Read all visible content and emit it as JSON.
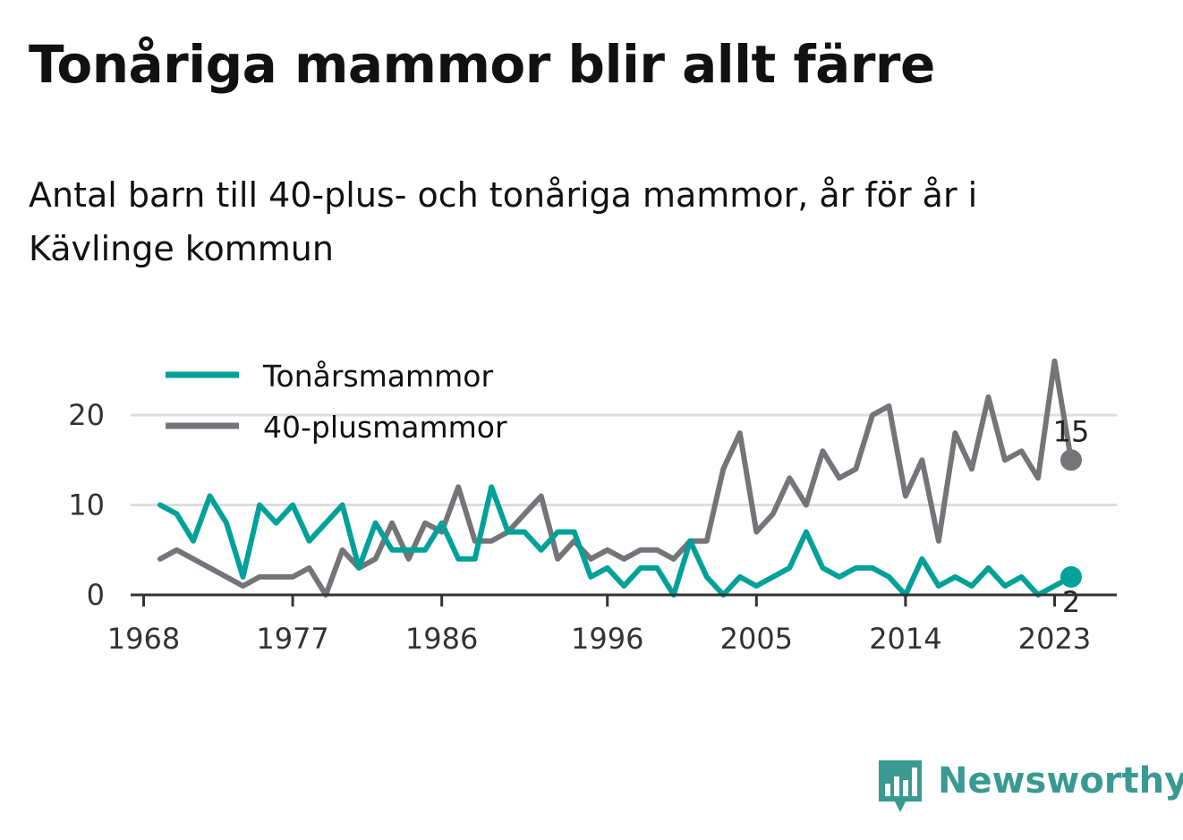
{
  "title": "Tonåriga mammor blir allt färre",
  "subtitle": "Antal barn till 40-plus- och tonåriga mammor, år för år i Kävlinge kommun",
  "brand": {
    "name": "Newsworthy",
    "color": "#3a9a92"
  },
  "chart_data": {
    "type": "line",
    "x": [
      1969,
      1970,
      1971,
      1972,
      1973,
      1974,
      1975,
      1976,
      1977,
      1978,
      1979,
      1980,
      1981,
      1982,
      1983,
      1984,
      1985,
      1986,
      1987,
      1988,
      1989,
      1990,
      1991,
      1992,
      1993,
      1994,
      1995,
      1996,
      1997,
      1998,
      1999,
      2000,
      2001,
      2002,
      2003,
      2004,
      2005,
      2006,
      2007,
      2008,
      2009,
      2010,
      2011,
      2012,
      2013,
      2014,
      2015,
      2016,
      2017,
      2018,
      2019,
      2020,
      2021,
      2022,
      2023,
      2024
    ],
    "series": [
      {
        "name": "Tonårsmammor",
        "color": "#00a199",
        "values": [
          10,
          9,
          6,
          11,
          8,
          2,
          10,
          8,
          10,
          6,
          8,
          10,
          3,
          8,
          5,
          5,
          5,
          8,
          4,
          4,
          12,
          7,
          7,
          5,
          7,
          7,
          2,
          3,
          1,
          3,
          3,
          0,
          6,
          2,
          0,
          2,
          1,
          2,
          3,
          7,
          3,
          2,
          3,
          3,
          2,
          0,
          4,
          1,
          2,
          1,
          3,
          1,
          2,
          0,
          1,
          2
        ],
        "end_label": "2"
      },
      {
        "name": "40-plusmammor",
        "color": "#757579",
        "values": [
          4,
          5,
          4,
          3,
          2,
          1,
          2,
          2,
          2,
          3,
          0,
          5,
          3,
          4,
          8,
          4,
          8,
          7,
          12,
          6,
          6,
          7,
          9,
          11,
          4,
          6,
          4,
          5,
          4,
          5,
          5,
          4,
          6,
          6,
          14,
          18,
          7,
          9,
          13,
          10,
          16,
          13,
          14,
          20,
          21,
          11,
          15,
          6,
          18,
          14,
          22,
          15,
          16,
          13,
          26,
          15
        ],
        "end_label": "15"
      }
    ],
    "x_ticks": [
      "1968",
      "1977",
      "1986",
      "1996",
      "2005",
      "2014",
      "2023"
    ],
    "y_ticks": [
      0,
      10,
      20
    ],
    "ylim": [
      0,
      26
    ],
    "grid": true,
    "legend": "top-left"
  }
}
